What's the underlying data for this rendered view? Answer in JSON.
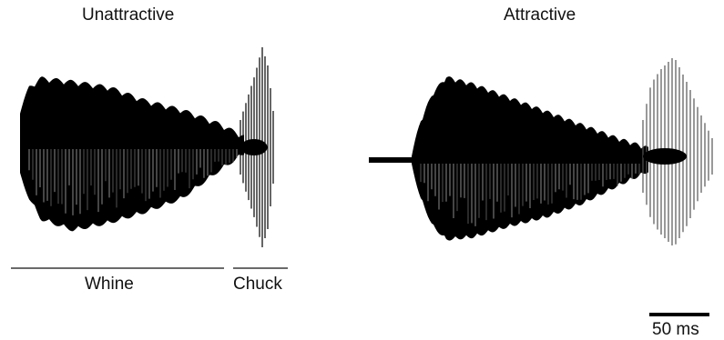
{
  "panels": {
    "left_title": "Unattractive",
    "right_title": "Attractive"
  },
  "segments": {
    "whine": "Whine",
    "chuck": "Chuck"
  },
  "scale_bar": {
    "label": "50 ms"
  },
  "colors": {
    "waveform_dark": "#000000",
    "waveform_mid": "#555555",
    "waveform_light": "#8a8a8a"
  }
}
